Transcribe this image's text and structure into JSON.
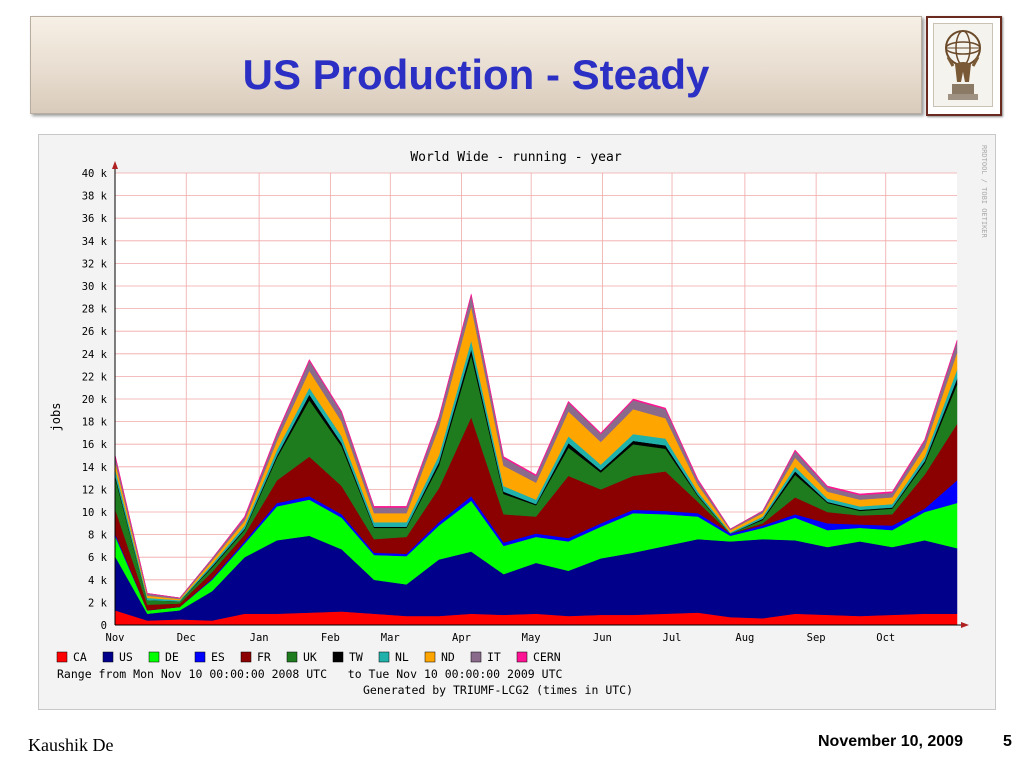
{
  "slide": {
    "title": "US Production - Steady",
    "footer_author": "Kaushik De",
    "footer_date": "November 10, 2009",
    "page_number": "5"
  },
  "chart_data": {
    "type": "area",
    "stacked": true,
    "title": "World Wide - running - year",
    "ylabel": "jobs",
    "xlabel": "",
    "ylim": [
      0,
      40
    ],
    "y_ticks": [
      "0",
      "2 k",
      "4 k",
      "6 k",
      "8 k",
      "10 k",
      "12 k",
      "14 k",
      "16 k",
      "18 k",
      "20 k",
      "22 k",
      "24 k",
      "26 k",
      "28 k",
      "30 k",
      "32 k",
      "34 k",
      "36 k",
      "38 k",
      "40 k"
    ],
    "x_ticks": [
      "Nov",
      "Dec",
      "Jan",
      "Feb",
      "Mar",
      "Apr",
      "May",
      "Jun",
      "Jul",
      "Aug",
      "Sep",
      "Oct"
    ],
    "x_tick_weeks": [
      0,
      4.4,
      8.9,
      13.3,
      17.0,
      21.4,
      25.7,
      30.1,
      34.4,
      38.9,
      43.3,
      47.6
    ],
    "x_unit": "weeks from Nov 10 2008",
    "x": [
      0,
      2,
      4,
      6,
      8,
      10,
      12,
      14,
      16,
      18,
      20,
      22,
      24,
      26,
      28,
      30,
      32,
      34,
      36,
      38,
      40,
      42,
      44,
      46,
      48,
      50,
      52
    ],
    "side_text": "RRDTOOL / TOBI OETIKER",
    "range_text": "Range from Mon Nov 10 00:00:00 2008 UTC   to Tue Nov 10 00:00:00 2009 UTC",
    "generated_text": "Generated by TRIUMF-LCG2 (times in UTC)",
    "grid": true,
    "series": [
      {
        "name": "CA",
        "color": "#ff0000",
        "values": [
          1.3,
          0.4,
          0.5,
          0.4,
          1.0,
          1.0,
          1.1,
          1.2,
          1.0,
          0.8,
          0.8,
          1.0,
          0.9,
          1.0,
          0.8,
          0.9,
          0.9,
          1.0,
          1.1,
          0.7,
          0.6,
          1.0,
          0.9,
          0.8,
          0.9,
          1.0,
          1.0
        ]
      },
      {
        "name": "US",
        "color": "#00008b",
        "values": [
          4.8,
          0.6,
          0.8,
          2.6,
          5.0,
          6.5,
          6.8,
          5.5,
          3.0,
          2.8,
          5.0,
          5.5,
          3.6,
          4.5,
          4.0,
          5.0,
          5.5,
          6.0,
          6.5,
          6.7,
          7.0,
          6.5,
          6.0,
          6.6,
          6.0,
          6.5,
          5.8
        ]
      },
      {
        "name": "DE",
        "color": "#00ff00",
        "values": [
          1.8,
          0.3,
          0.3,
          1.0,
          1.2,
          3.0,
          3.2,
          2.8,
          2.2,
          2.5,
          3.0,
          4.5,
          2.5,
          2.3,
          2.6,
          2.8,
          3.5,
          2.8,
          2.0,
          0.5,
          1.0,
          2.0,
          1.5,
          1.2,
          1.5,
          2.5,
          4.0
        ]
      },
      {
        "name": "ES",
        "color": "#0000ff",
        "values": [
          0.2,
          0.0,
          0.0,
          0.1,
          0.2,
          0.3,
          0.3,
          0.3,
          0.2,
          0.2,
          0.3,
          0.4,
          0.3,
          0.3,
          0.3,
          0.3,
          0.3,
          0.3,
          0.3,
          0.2,
          0.2,
          0.3,
          0.6,
          0.3,
          0.4,
          0.3,
          2.0
        ]
      },
      {
        "name": "FR",
        "color": "#8b0000",
        "values": [
          2.2,
          0.5,
          0.3,
          0.6,
          0.6,
          2.0,
          3.5,
          2.5,
          1.2,
          1.5,
          3.0,
          7.0,
          2.5,
          1.5,
          5.5,
          3.0,
          3.0,
          3.5,
          1.0,
          0.0,
          0.2,
          1.5,
          1.0,
          0.8,
          1.0,
          3.0,
          5.0
        ]
      },
      {
        "name": "UK",
        "color": "#1e7b1e",
        "values": [
          2.8,
          0.4,
          0.2,
          0.4,
          0.4,
          2.0,
          5.0,
          3.5,
          1.0,
          0.8,
          2.0,
          5.5,
          1.8,
          1.0,
          2.5,
          1.5,
          2.8,
          2.0,
          0.5,
          0.0,
          0.3,
          2.0,
          0.8,
          0.4,
          0.5,
          1.0,
          3.5
        ]
      },
      {
        "name": "TW",
        "color": "#000000",
        "values": [
          0.2,
          0.0,
          0.0,
          0.1,
          0.1,
          0.2,
          0.5,
          0.3,
          0.1,
          0.1,
          0.3,
          0.5,
          0.2,
          0.1,
          0.4,
          0.2,
          0.3,
          0.3,
          0.1,
          0.0,
          0.1,
          0.3,
          0.1,
          0.1,
          0.1,
          0.2,
          0.5
        ]
      },
      {
        "name": "NL",
        "color": "#20b2aa",
        "values": [
          0.6,
          0.2,
          0.1,
          0.2,
          0.3,
          0.5,
          0.6,
          0.6,
          0.4,
          0.4,
          0.6,
          0.8,
          0.5,
          0.4,
          0.6,
          0.5,
          0.6,
          0.6,
          0.3,
          0.1,
          0.2,
          0.4,
          0.3,
          0.3,
          0.3,
          0.4,
          0.8
        ]
      },
      {
        "name": "ND",
        "color": "#ffa500",
        "values": [
          0.6,
          0.2,
          0.1,
          0.3,
          0.4,
          0.8,
          1.5,
          1.3,
          0.8,
          0.8,
          2.5,
          3.0,
          1.8,
          1.5,
          2.2,
          2.0,
          2.2,
          1.8,
          0.6,
          0.2,
          0.3,
          0.8,
          0.6,
          0.6,
          0.6,
          0.8,
          1.5
        ]
      },
      {
        "name": "IT",
        "color": "#8b6b8b",
        "values": [
          0.5,
          0.2,
          0.1,
          0.2,
          0.3,
          0.6,
          0.9,
          0.8,
          0.5,
          0.5,
          0.8,
          1.0,
          0.7,
          0.6,
          0.8,
          0.7,
          0.8,
          0.8,
          0.4,
          0.1,
          0.2,
          0.6,
          0.4,
          0.4,
          0.4,
          0.6,
          1.0
        ]
      },
      {
        "name": "CERN",
        "color": "#ff1493",
        "values": [
          0.1,
          0.0,
          0.0,
          0.0,
          0.1,
          0.1,
          0.1,
          0.1,
          0.1,
          0.1,
          0.1,
          0.1,
          0.1,
          0.1,
          0.1,
          0.1,
          0.1,
          0.1,
          0.1,
          0.0,
          0.0,
          0.1,
          0.1,
          0.1,
          0.1,
          0.1,
          0.1
        ]
      }
    ]
  }
}
